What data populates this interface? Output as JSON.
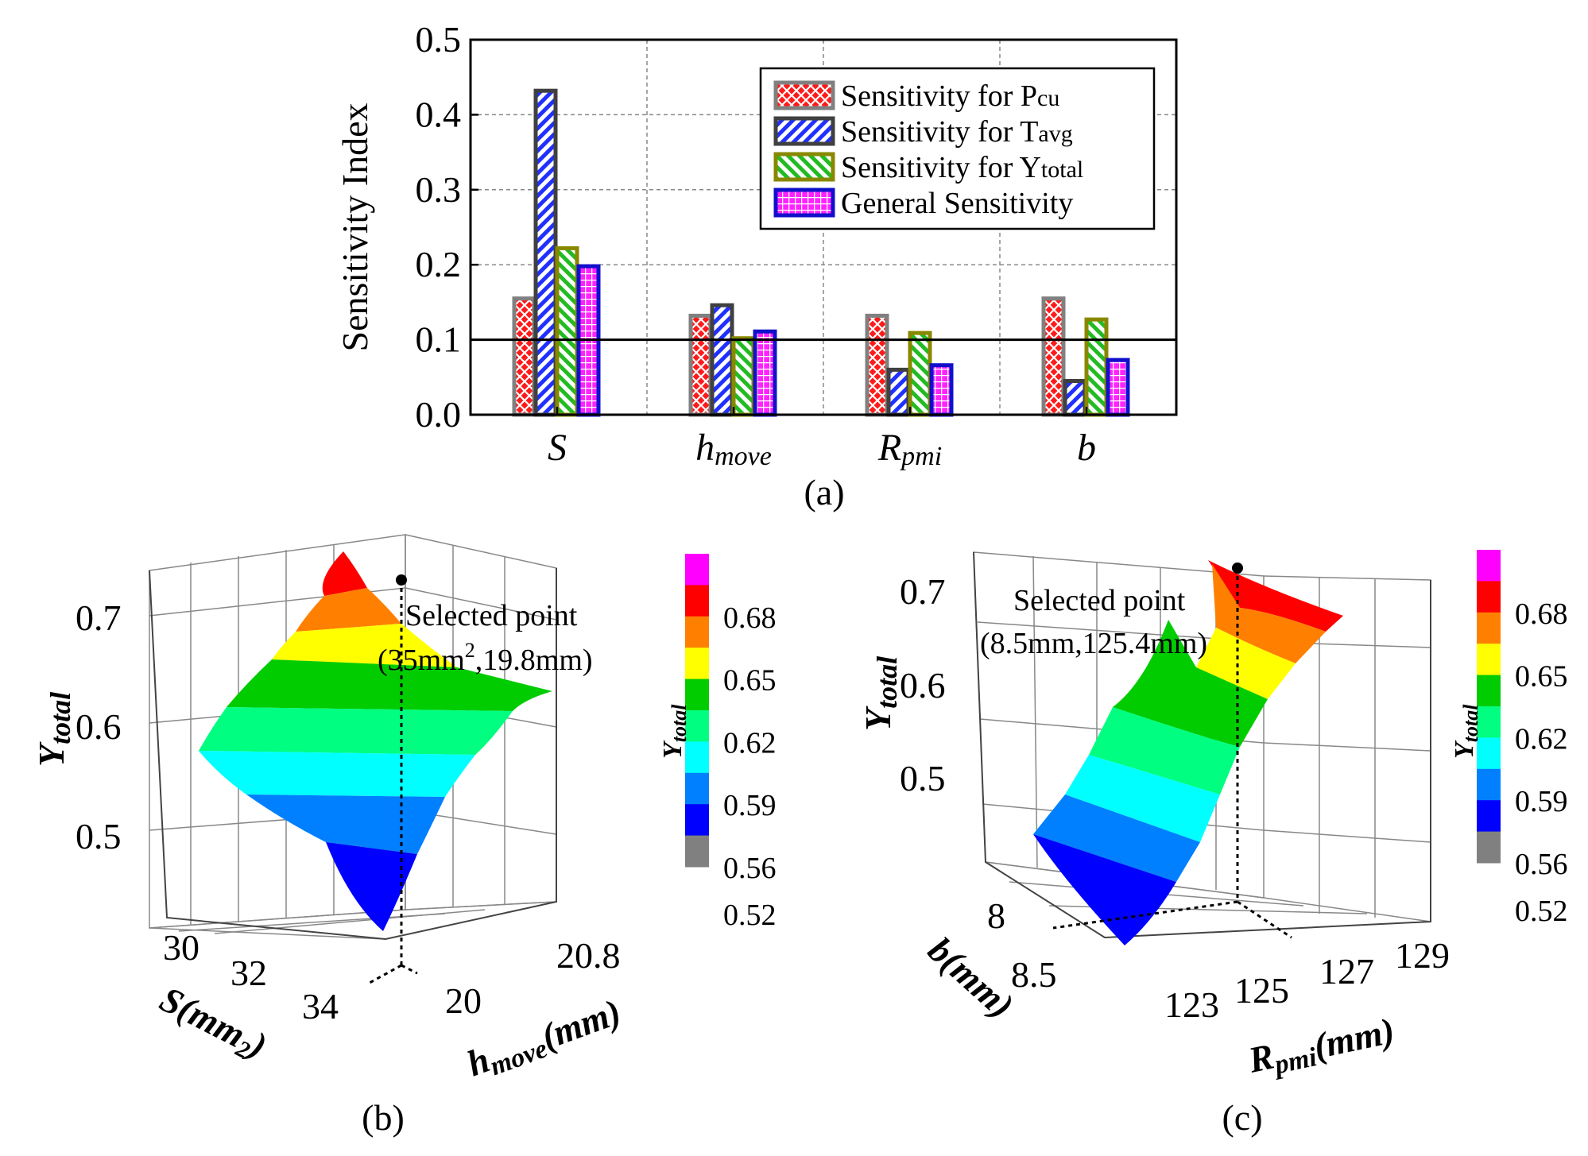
{
  "figure": {
    "panel_a_label": "(a)",
    "panel_b_label": "(b)",
    "panel_c_label": "(c)"
  },
  "chart_data": [
    {
      "type": "bar",
      "ylabel": "Sensitivity Index",
      "ylim": [
        0.0,
        0.5
      ],
      "yticks": [
        "0.0",
        "0.1",
        "0.2",
        "0.3",
        "0.4",
        "0.5"
      ],
      "grid": true,
      "threshold": 0.1,
      "categories": [
        {
          "main": "S",
          "sub": ""
        },
        {
          "main": "h",
          "sub": "move"
        },
        {
          "main": "R",
          "sub": "pmi"
        },
        {
          "main": "b",
          "sub": ""
        }
      ],
      "legend_position": "top-right",
      "series": [
        {
          "name": "Sensitivity for P",
          "sub": "cu",
          "values": [
            0.155,
            0.132,
            0.132,
            0.155
          ],
          "fill": "#ff1a1a",
          "stroke": "#808080",
          "pattern": "crosshatch"
        },
        {
          "name": "Sensitivity for T",
          "sub": "avg",
          "values": [
            0.432,
            0.146,
            0.06,
            0.045
          ],
          "fill": "#2030ff",
          "stroke": "#404040",
          "pattern": "diagonal"
        },
        {
          "name": "Sensitivity for Y",
          "sub": "total",
          "values": [
            0.222,
            0.102,
            0.109,
            0.127
          ],
          "fill": "#22bb22",
          "stroke": "#888800",
          "pattern": "diagonal"
        },
        {
          "name": "General Sensitivity",
          "sub": "",
          "values": [
            0.198,
            0.111,
            0.066,
            0.073
          ],
          "fill": "#ff22ff",
          "stroke": "#1010cc",
          "pattern": "grid"
        }
      ]
    },
    {
      "type": "surface3d",
      "zlabel": {
        "main": "Y",
        "sub": "total"
      },
      "zticks": [
        "0.7",
        "0.6",
        "0.5"
      ],
      "xlabel": {
        "main": "S(mm",
        "sub": "2",
        "end": ")"
      },
      "xticks": [
        "30",
        "32",
        "34"
      ],
      "ylabel": {
        "main": "h",
        "sub": "move",
        "end": "(mm)"
      },
      "yticks": [
        "20",
        "20.8"
      ],
      "annotation": {
        "line1": "Selected point",
        "line2_pre": "(35mm",
        "sup": "2",
        "line2_post": ",19.8mm)"
      },
      "colorbar": {
        "title": {
          "main": "Y",
          "sub": "total"
        },
        "ticks": [
          "0.68",
          "0.65",
          "0.62",
          "0.59",
          "0.56",
          "0.52"
        ],
        "colors": [
          "#ff00ff",
          "#ff0000",
          "#ff8000",
          "#ffff00",
          "#00cc00",
          "#00ff80",
          "#00ffff",
          "#0080ff",
          "#0000ff",
          "#808080"
        ]
      }
    },
    {
      "type": "surface3d",
      "zlabel": {
        "main": "Y",
        "sub": "total"
      },
      "zticks": [
        "0.7",
        "0.6",
        "0.5"
      ],
      "xlabel": {
        "main": "b(mm)",
        "sub": "",
        "end": ""
      },
      "xticks": [
        "8",
        "8.5"
      ],
      "ylabel": {
        "main": "R",
        "sub": "pmi",
        "end": "(mm)"
      },
      "yticks": [
        "123",
        "125",
        "127",
        "129"
      ],
      "annotation": {
        "line1": "Selected point",
        "line2_pre": "(8.5mm,125.4mm)",
        "sup": "",
        "line2_post": ""
      },
      "colorbar": {
        "title": {
          "main": "Y",
          "sub": "total"
        },
        "ticks": [
          "0.68",
          "0.65",
          "0.62",
          "0.59",
          "0.56",
          "0.52"
        ],
        "colors": [
          "#ff00ff",
          "#ff0000",
          "#ff8000",
          "#ffff00",
          "#00cc00",
          "#00ff80",
          "#00ffff",
          "#0080ff",
          "#0000ff",
          "#808080"
        ]
      }
    }
  ]
}
